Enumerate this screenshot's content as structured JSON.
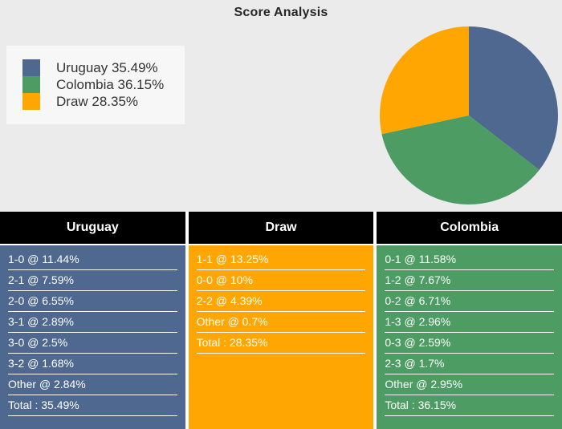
{
  "page": {
    "title": "Score Analysis"
  },
  "chart_data": {
    "type": "pie",
    "title": "Score Analysis",
    "labels": [
      "Uruguay",
      "Colombia",
      "Draw"
    ],
    "values": [
      35.49,
      36.15,
      28.35
    ],
    "unit": "%",
    "colors": [
      "#4E6890",
      "#4D9C63",
      "#FFA602"
    ],
    "start_angle": "top",
    "direction": "clockwise",
    "legend_position": "top-left",
    "center": [
      584,
      144
    ],
    "radius": 111
  },
  "legend": {
    "items": [
      {
        "label": "Uruguay 35.49%",
        "color": "#4E6890"
      },
      {
        "label": "Colombia 36.15%",
        "color": "#4D9C63"
      },
      {
        "label": "Draw 28.35%",
        "color": "#FFA602"
      }
    ]
  },
  "tables": [
    {
      "header": "Uruguay",
      "color": "#4E6890",
      "rows": [
        "1-0 @ 11.44%",
        "2-1 @ 7.59%",
        "2-0 @ 6.55%",
        "3-1 @ 2.89%",
        "3-0 @ 2.5%",
        "3-2 @ 1.68%",
        "Other @ 2.84%",
        "Total : 35.49%"
      ]
    },
    {
      "header": "Draw",
      "color": "#FFA602",
      "rows": [
        "1-1 @ 13.25%",
        "0-0 @ 10%",
        "2-2 @ 4.39%",
        "Other @ 0.7%",
        "Total : 28.35%"
      ]
    },
    {
      "header": "Colombia",
      "color": "#4D9C63",
      "rows": [
        "0-1 @ 11.58%",
        "1-2 @ 7.67%",
        "0-2 @ 6.71%",
        "1-3 @ 2.96%",
        "0-3 @ 2.59%",
        "2-3 @ 1.7%",
        "Other @ 2.95%",
        "Total : 36.15%"
      ]
    }
  ],
  "colors": {
    "chart_background": "#EBEBEB",
    "legend_background": "#F7F7F7",
    "table_header_background": "#000000",
    "row_text": "#FFFFFF",
    "title_text": "#262626",
    "legend_text": "#333333"
  }
}
